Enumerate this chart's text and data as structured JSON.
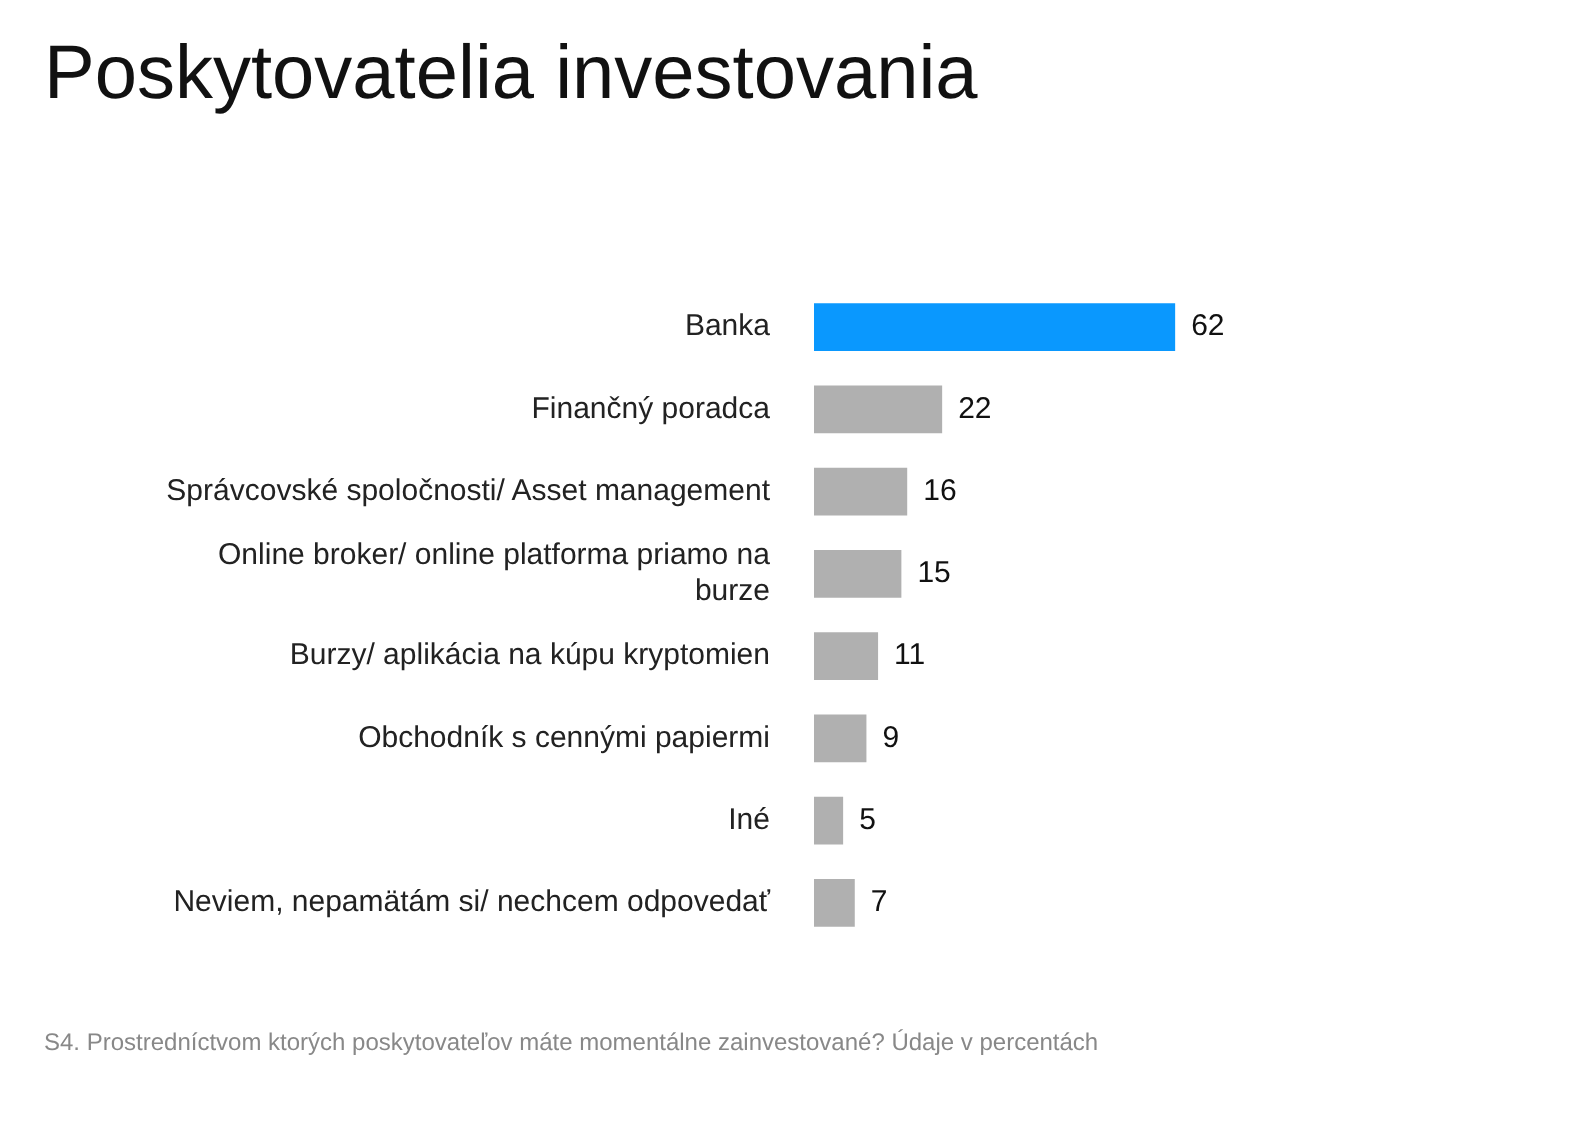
{
  "chart_data": {
    "type": "bar",
    "orientation": "horizontal",
    "title": "Poskytovatelia investovania",
    "categories": [
      "Banka",
      "Finančný poradca",
      "Správcovské spoločnosti/ Asset management",
      "Online broker/ online platforma priamo na burze",
      "Burzy/ aplikácia na kúpu kryptomien",
      "Obchodník s cennými papiermi",
      "Iné",
      "Neviem, nepamätám si/ nechcem odpovedať"
    ],
    "values": [
      62,
      22,
      16,
      15,
      11,
      9,
      5,
      7
    ],
    "colors": [
      "#0a98fe",
      "#b0b0b0",
      "#b0b0b0",
      "#b0b0b0",
      "#b0b0b0",
      "#b0b0b0",
      "#b0b0b0",
      "#b0b0b0"
    ],
    "data_labels": true,
    "legend": false,
    "annotations": [
      "S4. Prostredníctvom ktorých poskytovateľov máte momentálne zainvestované? Údaje v percentách"
    ]
  }
}
